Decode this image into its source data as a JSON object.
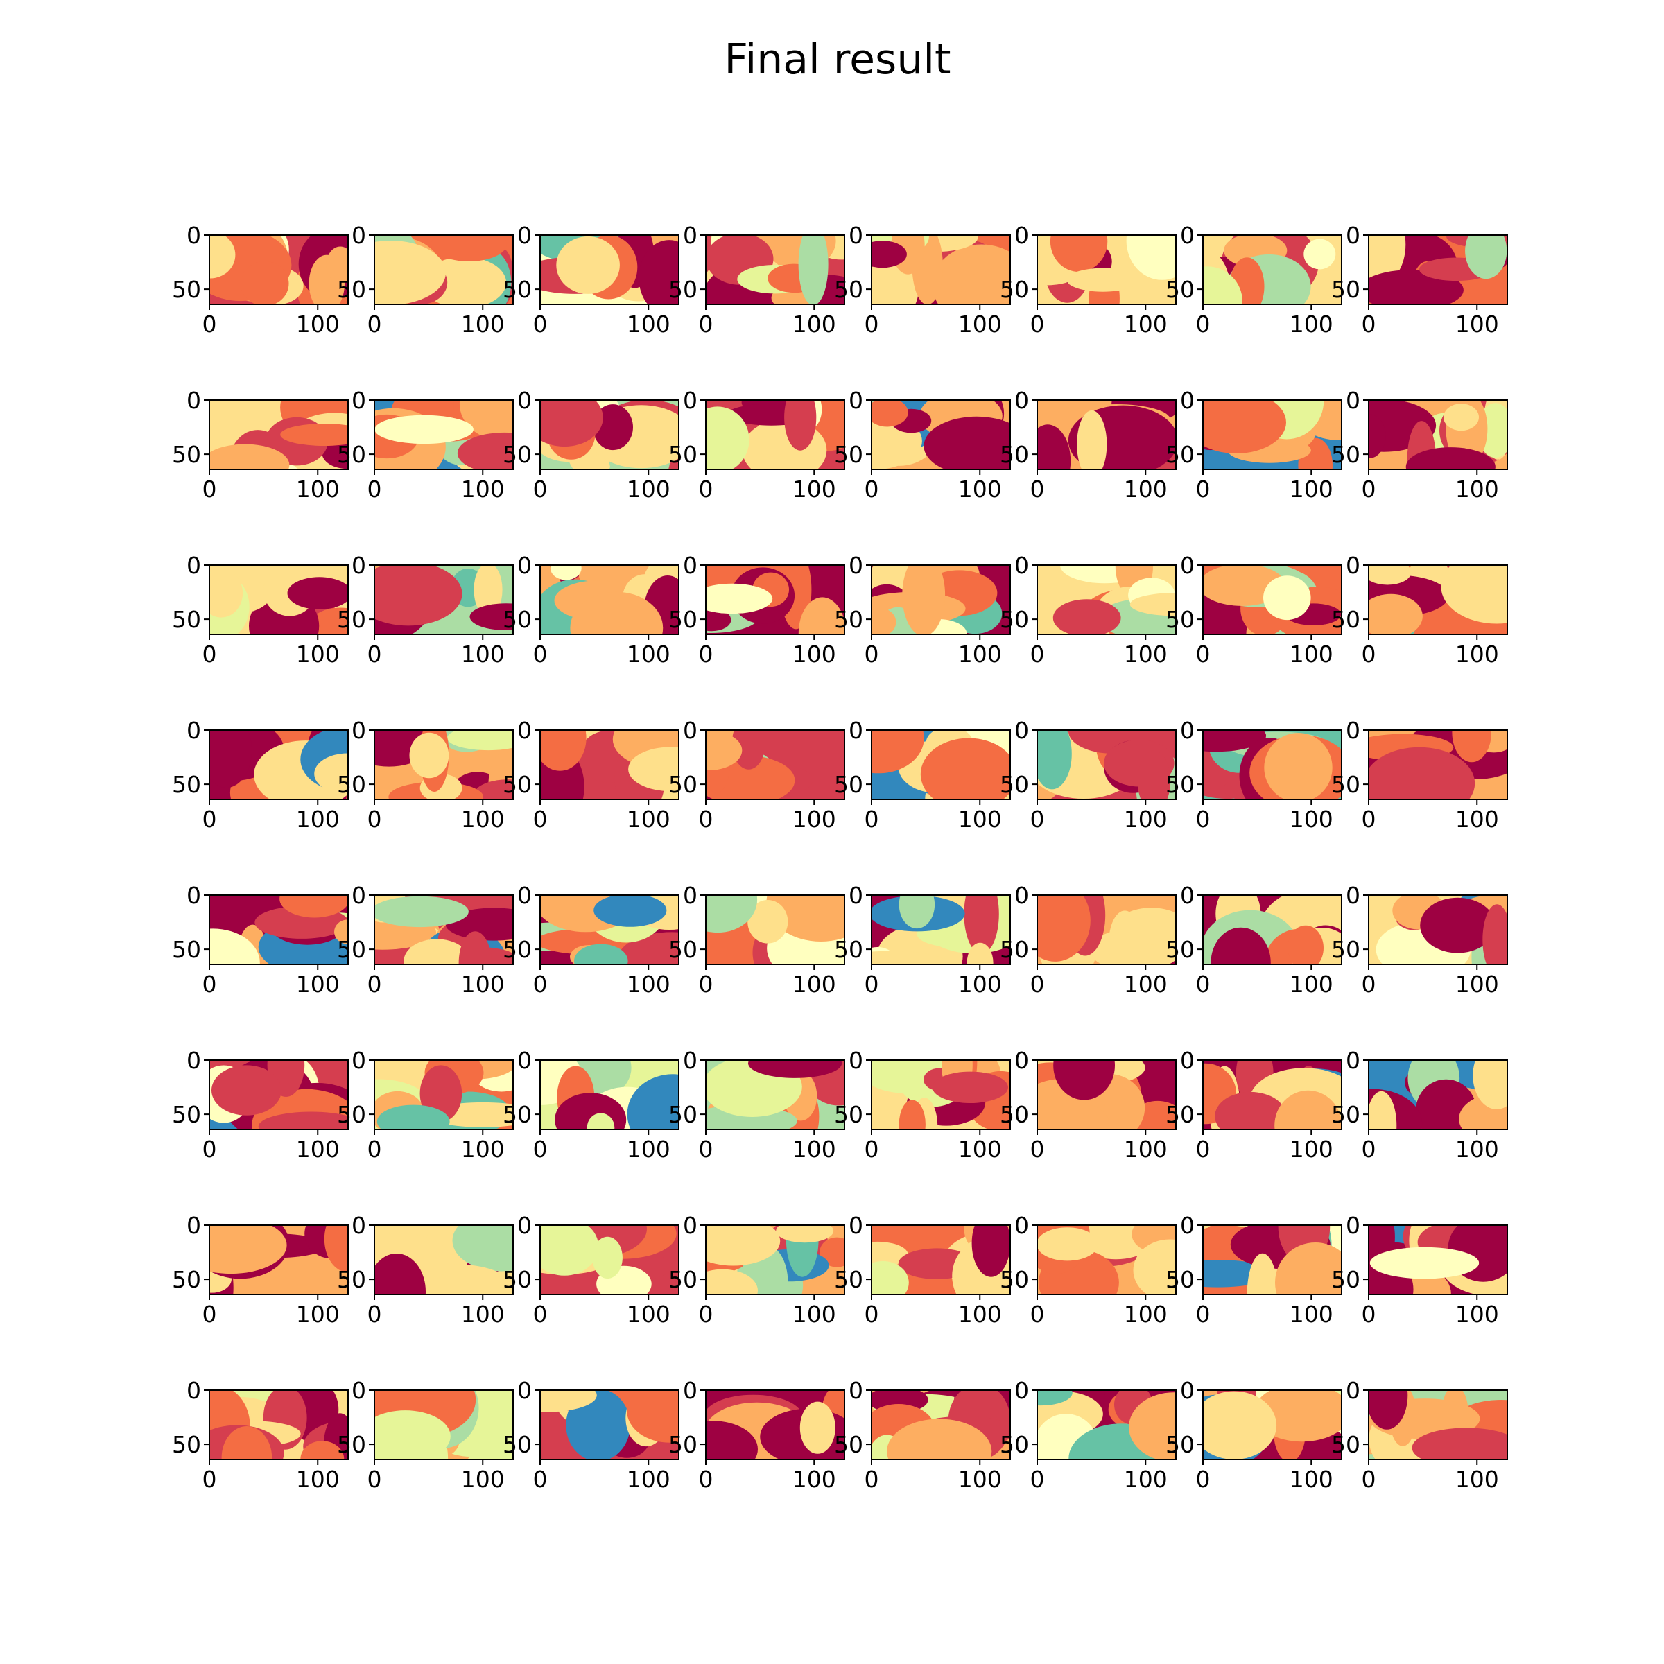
{
  "chart_data": {
    "type": "heatmap",
    "title": "Final result",
    "layout": "8x8 grid of image panels",
    "colormap": "Spectral",
    "colormap_stops": [
      "#9e0142",
      "#d53e4f",
      "#f46d43",
      "#fdae61",
      "#fee08b",
      "#ffffbf",
      "#e6f598",
      "#abdda4",
      "#66c2a5",
      "#3288bd",
      "#5e4fa2"
    ],
    "image_size": {
      "width": 128,
      "height": 64
    },
    "xlim": [
      0,
      128
    ],
    "ylim": [
      64,
      0
    ],
    "xticks": [
      "0",
      "100"
    ],
    "yticks": [
      "0",
      "50"
    ],
    "panel_count": 64,
    "grid": false
  }
}
